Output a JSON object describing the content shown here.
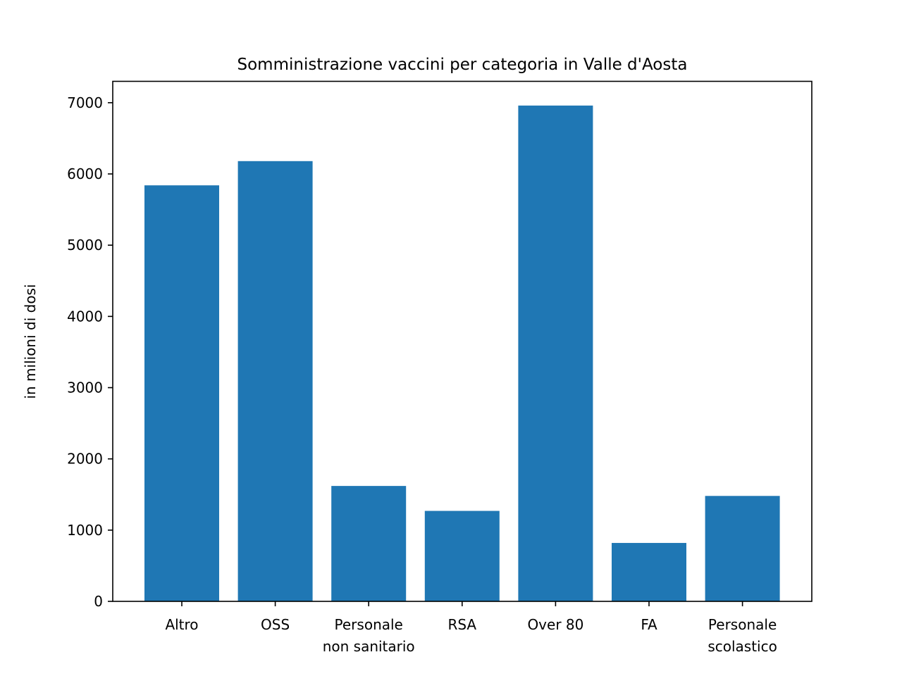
{
  "chart_data": {
    "type": "bar",
    "title": "Somministrazione vaccini per categoria in Valle d'Aosta",
    "xlabel": "",
    "ylabel": "in milioni di dosi",
    "categories": [
      [
        "Altro"
      ],
      [
        "OSS"
      ],
      [
        "Personale",
        "non sanitario"
      ],
      [
        "RSA"
      ],
      [
        "Over 80"
      ],
      [
        "FA"
      ],
      [
        "Personale",
        "scolastico"
      ]
    ],
    "values": [
      5840,
      6180,
      1620,
      1270,
      6960,
      820,
      1480
    ],
    "ylim": [
      0,
      7300
    ],
    "yticks": [
      0,
      1000,
      2000,
      3000,
      4000,
      5000,
      6000,
      7000
    ],
    "bar_color": "#1f77b4",
    "grid": false
  }
}
